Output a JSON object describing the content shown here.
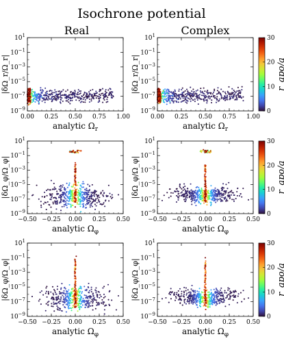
{
  "figure": {
    "suptitle": "Isochrone potential",
    "column_titles": [
      "Real",
      "Complex"
    ],
    "colorbar": {
      "label": "r_apo/a",
      "ticks": [
        "0",
        "10",
        "20",
        "30"
      ],
      "range": [
        0,
        30
      ],
      "colormap": [
        "#30123b",
        "#4145ab",
        "#4675ed",
        "#39a2fc",
        "#1bcfd4",
        "#24eca6",
        "#61fc6c",
        "#a4fc3b",
        "#d1e834",
        "#f3c63a",
        "#fe9b2d",
        "#f36315",
        "#d93806",
        "#b11901",
        "#7a0403"
      ]
    }
  },
  "chart_data": [
    {
      "type": "scatter",
      "panel": "row1-real",
      "xlabel": "analytic Ω_r",
      "ylabel": "|δΩ_r/Ω_r|",
      "xlim": [
        0,
        1
      ],
      "ylim_log10": [
        -9,
        1
      ],
      "xticks": [
        "0.00",
        "0.25",
        "0.50",
        "0.75",
        "1.00"
      ],
      "yticks": [
        "10^-9",
        "10^-7",
        "10^-5",
        "10^-3",
        "10^-1",
        "10^1"
      ],
      "points": [
        [
          0.88,
          -6.8,
          0.5
        ],
        [
          0.8,
          -7.2,
          0.4
        ],
        [
          0.72,
          -6.6,
          0.9
        ],
        [
          0.65,
          -7.4,
          0.3
        ],
        [
          0.6,
          -6.5,
          1.0
        ],
        [
          0.5,
          -7.0,
          1.5
        ],
        [
          0.45,
          -7.6,
          1.0
        ],
        [
          0.4,
          -6.9,
          2.0
        ],
        [
          0.35,
          -7.5,
          1.5
        ],
        [
          0.3,
          -6.7,
          2.5
        ],
        [
          0.25,
          -7.3,
          3.0
        ],
        [
          0.2,
          -6.6,
          4.0
        ],
        [
          0.15,
          -7.1,
          6.0
        ],
        [
          0.12,
          -7.8,
          8.0
        ],
        [
          0.1,
          -6.8,
          10.0
        ],
        [
          0.08,
          -7.2,
          13.0
        ],
        [
          0.06,
          -6.4,
          17.0
        ],
        [
          0.04,
          -7.0,
          20.0
        ],
        [
          0.03,
          -7.9,
          23.0
        ],
        [
          0.02,
          -6.6,
          26.0
        ],
        [
          0.01,
          -7.3,
          29.0
        ],
        [
          0.01,
          -6.2,
          28.0
        ]
      ]
    },
    {
      "type": "scatter",
      "panel": "row1-complex",
      "xlabel": "analytic Ω_r",
      "ylabel": "|δΩ_r/Ω_r|",
      "xlim": [
        0,
        1
      ],
      "ylim_log10": [
        -9,
        1
      ],
      "xticks": [
        "0.00",
        "0.25",
        "0.50",
        "0.75",
        "1.00"
      ],
      "yticks": [
        "10^-9",
        "10^-7",
        "10^-5",
        "10^-3",
        "10^-1",
        "10^1"
      ],
      "points": [
        [
          0.85,
          -6.9,
          0.5
        ],
        [
          0.78,
          -6.5,
          0.5
        ],
        [
          0.7,
          -7.3,
          0.8
        ],
        [
          0.62,
          -6.7,
          1.0
        ],
        [
          0.55,
          -7.1,
          1.0
        ],
        [
          0.48,
          -6.6,
          1.5
        ],
        [
          0.42,
          -7.5,
          1.2
        ],
        [
          0.37,
          -6.8,
          2.0
        ],
        [
          0.31,
          -7.2,
          2.5
        ],
        [
          0.26,
          -6.5,
          3.0
        ],
        [
          0.21,
          -7.4,
          4.0
        ],
        [
          0.16,
          -6.9,
          6.0
        ],
        [
          0.13,
          -7.7,
          8.0
        ],
        [
          0.1,
          -6.6,
          11.0
        ],
        [
          0.08,
          -7.1,
          14.0
        ],
        [
          0.06,
          -6.3,
          17.0
        ],
        [
          0.04,
          -7.3,
          21.0
        ],
        [
          0.03,
          -6.8,
          24.0
        ],
        [
          0.02,
          -7.6,
          27.0
        ],
        [
          0.01,
          -6.4,
          29.0
        ]
      ]
    },
    {
      "type": "scatter",
      "panel": "row2-real",
      "xlabel": "analytic Ω_φ",
      "ylabel": "|δΩ_φ/Ω_φ|",
      "xlim": [
        -0.5,
        0.5
      ],
      "ylim_log10": [
        -9,
        1
      ],
      "xticks": [
        "−0.50",
        "−0.25",
        "0.00",
        "0.25",
        "0.50"
      ],
      "yticks": [
        "10^-9",
        "10^-7",
        "10^-5",
        "10^-3",
        "10^-1",
        "10^1"
      ],
      "points": [
        [
          -0.45,
          -6.5,
          0.5
        ],
        [
          -0.38,
          -7.0,
          0.5
        ],
        [
          -0.3,
          -5.8,
          0.8
        ],
        [
          -0.25,
          -6.8,
          1.0
        ],
        [
          -0.2,
          -7.3,
          1.5
        ],
        [
          -0.15,
          -5.5,
          2.0
        ],
        [
          -0.1,
          -6.5,
          4.0
        ],
        [
          -0.06,
          -4.8,
          7.0
        ],
        [
          -0.03,
          -6.9,
          10.0
        ],
        [
          0.0,
          -6.0,
          15.0
        ],
        [
          0.0,
          -4.0,
          22.0
        ],
        [
          0.0,
          -2.0,
          27.0
        ],
        [
          0.0,
          -0.5,
          30.0
        ],
        [
          -0.02,
          -0.3,
          28.0
        ],
        [
          0.02,
          -0.4,
          29.0
        ],
        [
          0.03,
          -6.4,
          12.0
        ],
        [
          0.06,
          -5.2,
          6.0
        ],
        [
          0.1,
          -7.0,
          4.0
        ],
        [
          0.15,
          -5.7,
          2.0
        ],
        [
          0.2,
          -6.6,
          1.5
        ],
        [
          0.25,
          -7.4,
          1.0
        ],
        [
          0.3,
          -6.2,
          0.8
        ],
        [
          0.38,
          -6.9,
          0.5
        ],
        [
          0.45,
          -6.4,
          0.5
        ]
      ]
    },
    {
      "type": "scatter",
      "panel": "row2-complex",
      "xlabel": "analytic Ω_φ",
      "ylabel": "|δΩ_φ/Ω_φ|",
      "xlim": [
        -0.5,
        0.5
      ],
      "ylim_log10": [
        -9,
        1
      ],
      "xticks": [
        "−0.50",
        "−0.25",
        "0.00",
        "0.25",
        "0.50"
      ],
      "yticks": [
        "10^-9",
        "10^-7",
        "10^-5",
        "10^-3",
        "10^-1",
        "10^1"
      ],
      "points": [
        [
          -0.45,
          -7.2,
          0.5
        ],
        [
          -0.38,
          -6.8,
          0.5
        ],
        [
          -0.3,
          -7.4,
          0.8
        ],
        [
          -0.25,
          -6.5,
          1.0
        ],
        [
          -0.2,
          -7.1,
          1.5
        ],
        [
          -0.15,
          -6.2,
          2.0
        ],
        [
          -0.1,
          -7.3,
          4.0
        ],
        [
          -0.06,
          -5.9,
          7.0
        ],
        [
          -0.03,
          -6.9,
          10.0
        ],
        [
          0.0,
          -6.6,
          16.0
        ],
        [
          0.0,
          -4.2,
          23.0
        ],
        [
          0.0,
          -2.5,
          27.0
        ],
        [
          0.0,
          -0.3,
          30.0
        ],
        [
          -0.02,
          -0.2,
          28.0
        ],
        [
          0.02,
          -0.3,
          29.0
        ],
        [
          0.03,
          -7.0,
          12.0
        ],
        [
          0.06,
          -6.1,
          6.0
        ],
        [
          0.1,
          -7.2,
          4.0
        ],
        [
          0.15,
          -6.4,
          2.0
        ],
        [
          0.2,
          -7.0,
          1.5
        ],
        [
          0.25,
          -6.6,
          1.0
        ],
        [
          0.3,
          -7.3,
          0.8
        ],
        [
          0.38,
          -6.7,
          0.5
        ],
        [
          0.45,
          -7.1,
          0.5
        ]
      ]
    },
    {
      "type": "scatter",
      "panel": "row3-real",
      "xlabel": "analytic Ω_φ",
      "ylabel": "|δΩ_φ/Ω_φ|",
      "xlim": [
        -0.5,
        0.5
      ],
      "ylim_log10": [
        -9,
        1
      ],
      "xticks": [
        "−0.50",
        "−0.25",
        "0.00",
        "0.25",
        "0.50"
      ],
      "yticks": [
        "10^-9",
        "10^-7",
        "10^-5",
        "10^-3",
        "10^-1",
        "10^1"
      ],
      "points": [
        [
          -0.45,
          -6.3,
          0.5
        ],
        [
          -0.38,
          -6.9,
          0.5
        ],
        [
          -0.3,
          -5.6,
          0.8
        ],
        [
          -0.25,
          -6.6,
          1.0
        ],
        [
          -0.2,
          -7.2,
          1.5
        ],
        [
          -0.15,
          -5.3,
          2.0
        ],
        [
          -0.1,
          -6.4,
          4.0
        ],
        [
          -0.06,
          -4.7,
          7.0
        ],
        [
          -0.03,
          -6.8,
          10.0
        ],
        [
          0.0,
          -5.8,
          16.0
        ],
        [
          0.0,
          -4.5,
          21.0
        ],
        [
          0.0,
          -3.0,
          26.0
        ],
        [
          0.0,
          -1.5,
          29.0
        ],
        [
          0.01,
          -0.8,
          30.0
        ],
        [
          0.03,
          -6.2,
          12.0
        ],
        [
          0.06,
          -5.0,
          6.0
        ],
        [
          0.1,
          -6.9,
          4.0
        ],
        [
          0.15,
          -5.5,
          2.0
        ],
        [
          0.2,
          -6.5,
          1.5
        ],
        [
          0.25,
          -7.3,
          1.0
        ],
        [
          0.3,
          -6.0,
          0.8
        ],
        [
          0.38,
          -6.8,
          0.5
        ],
        [
          0.45,
          -6.2,
          0.5
        ]
      ]
    },
    {
      "type": "scatter",
      "panel": "row3-complex",
      "xlabel": "analytic Ω_φ",
      "ylabel": "|δΩ_φ/Ω_φ|",
      "xlim": [
        -0.5,
        0.5
      ],
      "ylim_log10": [
        -9,
        1
      ],
      "xticks": [
        "−0.50",
        "−0.25",
        "0.00",
        "0.25",
        "0.50"
      ],
      "yticks": [
        "10^-9",
        "10^-7",
        "10^-5",
        "10^-3",
        "10^-1",
        "10^1"
      ],
      "points": [
        [
          -0.45,
          -6.6,
          0.5
        ],
        [
          -0.38,
          -7.1,
          0.5
        ],
        [
          -0.3,
          -6.0,
          0.8
        ],
        [
          -0.25,
          -6.8,
          1.0
        ],
        [
          -0.2,
          -7.3,
          1.5
        ],
        [
          -0.15,
          -5.8,
          2.0
        ],
        [
          -0.1,
          -6.7,
          4.0
        ],
        [
          -0.06,
          -5.2,
          7.0
        ],
        [
          -0.03,
          -7.0,
          10.0
        ],
        [
          0.0,
          -6.3,
          16.0
        ],
        [
          0.0,
          -5.0,
          22.0
        ],
        [
          0.0,
          -3.5,
          26.0
        ],
        [
          0.0,
          -2.0,
          29.0
        ],
        [
          0.0,
          -1.0,
          30.0
        ],
        [
          0.03,
          -6.5,
          12.0
        ],
        [
          0.06,
          -5.4,
          6.0
        ],
        [
          0.1,
          -7.0,
          4.0
        ],
        [
          0.15,
          -6.0,
          2.0
        ],
        [
          0.2,
          -6.8,
          1.5
        ],
        [
          0.25,
          -7.4,
          1.0
        ],
        [
          0.3,
          -6.4,
          0.8
        ],
        [
          0.38,
          -7.0,
          0.5
        ],
        [
          0.45,
          -6.5,
          0.5
        ]
      ]
    }
  ]
}
